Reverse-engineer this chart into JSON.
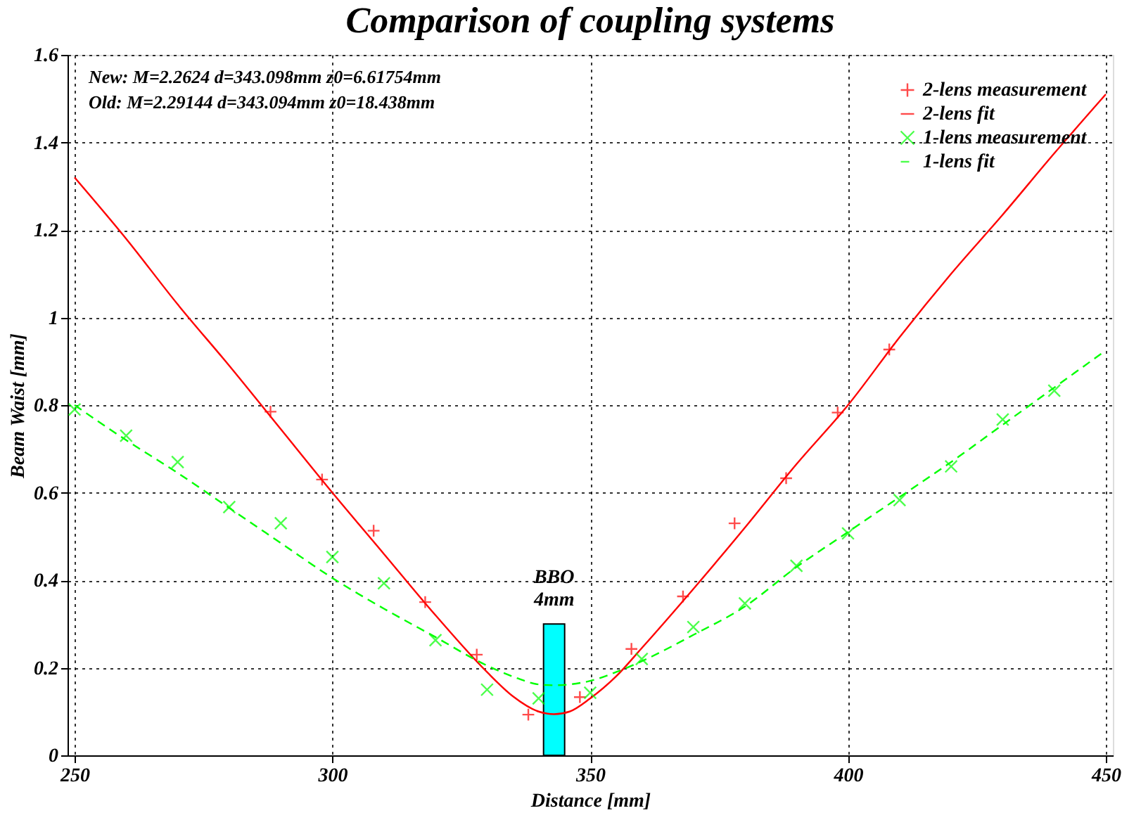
{
  "chart_data": {
    "type": "scatter",
    "title": "Comparison of coupling systems",
    "xlabel": "Distance [mm]",
    "ylabel": "Beam Waist [mm]",
    "xlim": [
      250,
      450
    ],
    "xticks": [
      250,
      300,
      350,
      400,
      450
    ],
    "ylim": [
      0,
      1.6
    ],
    "yticks": [
      0,
      0.2,
      0.4,
      0.6,
      0.8,
      1,
      1.2,
      1.4,
      1.6
    ],
    "grid": true,
    "legend": "top right",
    "annotations": [
      "New:    M=2.2624    d=343.098mm  z0=6.61754mm",
      "Old:     M=2.29144  d=343.094mm  z0=18.438mm",
      {
        "text": "BBO 4mm",
        "x": 343,
        "y": 0.3
      }
    ],
    "series": [
      {
        "name": null,
        "type": "bar",
        "color": "#00ffff",
        "x": [
          343
        ],
        "values": [
          0.3
        ]
      },
      {
        "name": "2-lens measurement",
        "marker": "plus",
        "color": "#ff0000",
        "x": [
          288,
          298,
          308,
          318,
          328,
          338,
          348,
          358,
          368,
          378,
          388,
          398,
          408
        ],
        "values": [
          0.785,
          0.63,
          0.513,
          0.35,
          0.23,
          0.093,
          0.133,
          0.243,
          0.363,
          0.53,
          0.633,
          0.783,
          0.927
        ]
      },
      {
        "name": "2-lens fit",
        "type": "line",
        "line_style": "solid",
        "color": "#ff0000",
        "x": [
          250,
          260,
          270,
          280,
          290,
          300,
          310,
          320,
          330,
          335,
          340,
          343,
          346,
          350,
          355,
          360,
          370,
          380,
          390,
          400,
          410,
          420,
          430,
          440,
          450
        ],
        "values": [
          1.32,
          1.18,
          1.03,
          0.89,
          0.745,
          0.6,
          0.46,
          0.32,
          0.19,
          0.135,
          0.1,
          0.094,
          0.1,
          0.13,
          0.18,
          0.245,
          0.38,
          0.52,
          0.665,
          0.8,
          0.955,
          1.1,
          1.235,
          1.375,
          1.51
        ]
      },
      {
        "name": "1-lens measurement",
        "marker": "cross",
        "color": "#00ff00",
        "x": [
          250,
          260,
          270,
          280,
          290,
          300,
          310,
          320,
          330,
          340,
          350,
          360,
          370,
          380,
          390,
          400,
          410,
          420,
          430,
          440
        ],
        "values": [
          0.79,
          0.73,
          0.67,
          0.567,
          0.53,
          0.453,
          0.393,
          0.263,
          0.15,
          0.13,
          0.143,
          0.22,
          0.293,
          0.347,
          0.433,
          0.507,
          0.583,
          0.66,
          0.767,
          0.833
        ]
      },
      {
        "name": "1-lens fit",
        "type": "line",
        "line_style": "dashed",
        "color": "#00ff00",
        "x": [
          250,
          260,
          270,
          280,
          290,
          300,
          310,
          320,
          330,
          335,
          340,
          343,
          346,
          350,
          355,
          360,
          370,
          380,
          390,
          400,
          410,
          420,
          430,
          440,
          450
        ],
        "values": [
          0.8,
          0.72,
          0.645,
          0.565,
          0.485,
          0.405,
          0.335,
          0.27,
          0.205,
          0.18,
          0.162,
          0.16,
          0.162,
          0.17,
          0.19,
          0.215,
          0.275,
          0.34,
          0.43,
          0.51,
          0.59,
          0.67,
          0.755,
          0.84,
          0.925
        ]
      }
    ]
  }
}
